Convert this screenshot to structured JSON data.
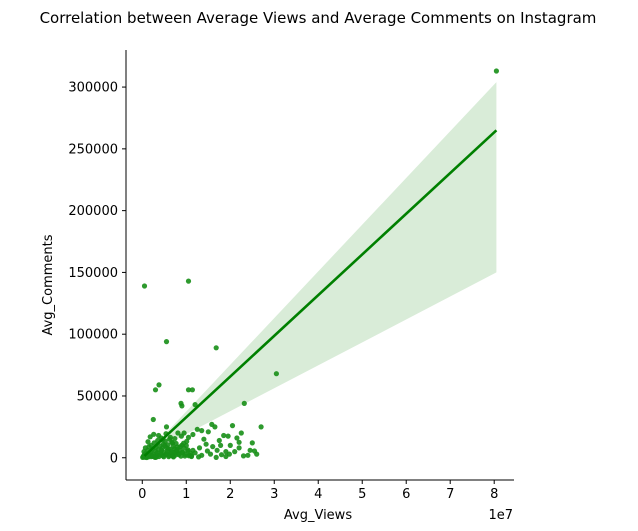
{
  "chart_data": {
    "type": "scatter",
    "title": "Correlation between Average Views and Average Comments on Instagram",
    "xlabel": "Avg_Views",
    "ylabel": "Avg_Comments",
    "x_offset_label": "1e7",
    "x_ticks": [
      0,
      1,
      2,
      3,
      4,
      5,
      6,
      7,
      8
    ],
    "x_tick_labels": [
      "0",
      "1",
      "2",
      "3",
      "4",
      "5",
      "6",
      "7",
      "8"
    ],
    "y_ticks": [
      0,
      50000,
      100000,
      150000,
      200000,
      250000,
      300000
    ],
    "y_tick_labels": [
      "0",
      "50000",
      "100000",
      "150000",
      "200000",
      "250000",
      "300000"
    ],
    "xlim": [
      -0.37,
      8.45
    ],
    "ylim": [
      -18000,
      330000
    ],
    "grid": false,
    "colors": {
      "points": "#178f17",
      "line": "#008000",
      "band": "#d9ecd8"
    },
    "regression": {
      "x": [
        0.05,
        8.05
      ],
      "y": [
        1500,
        265000
      ],
      "ci_upper": [
        1500,
        304000
      ],
      "ci_lower": [
        1500,
        150000
      ]
    },
    "points": [
      [
        0.01,
        300
      ],
      [
        0.02,
        800
      ],
      [
        0.03,
        1500
      ],
      [
        0.05,
        2500
      ],
      [
        0.06,
        400
      ],
      [
        0.08,
        3500
      ],
      [
        0.1,
        1200
      ],
      [
        0.12,
        6000
      ],
      [
        0.14,
        700
      ],
      [
        0.15,
        9000
      ],
      [
        0.17,
        2000
      ],
      [
        0.19,
        4500
      ],
      [
        0.2,
        10000
      ],
      [
        0.22,
        1800
      ],
      [
        0.23,
        7000
      ],
      [
        0.25,
        3000
      ],
      [
        0.27,
        12000
      ],
      [
        0.28,
        500
      ],
      [
        0.3,
        5200
      ],
      [
        0.31,
        8500
      ],
      [
        0.33,
        2200
      ],
      [
        0.35,
        14000
      ],
      [
        0.36,
        6500
      ],
      [
        0.38,
        1000
      ],
      [
        0.4,
        9500
      ],
      [
        0.42,
        3800
      ],
      [
        0.43,
        16000
      ],
      [
        0.45,
        7600
      ],
      [
        0.47,
        1500
      ],
      [
        0.48,
        11000
      ],
      [
        0.5,
        4200
      ],
      [
        0.52,
        13500
      ],
      [
        0.53,
        2600
      ],
      [
        0.55,
        8200
      ],
      [
        0.57,
        5600
      ],
      [
        0.58,
        10500
      ],
      [
        0.6,
        900
      ],
      [
        0.62,
        15000
      ],
      [
        0.63,
        6800
      ],
      [
        0.65,
        3300
      ],
      [
        0.67,
        12500
      ],
      [
        0.68,
        1700
      ],
      [
        0.7,
        9200
      ],
      [
        0.72,
        4700
      ],
      [
        0.73,
        7300
      ],
      [
        0.75,
        2100
      ],
      [
        0.77,
        11500
      ],
      [
        0.78,
        5100
      ],
      [
        0.8,
        8700
      ],
      [
        0.82,
        3600
      ],
      [
        0.85,
        6200
      ],
      [
        0.88,
        1300
      ],
      [
        0.9,
        10200
      ],
      [
        0.92,
        4300
      ],
      [
        0.95,
        7900
      ],
      [
        0.98,
        2700
      ],
      [
        1.0,
        9800
      ],
      [
        1.03,
        5400
      ],
      [
        1.06,
        1600
      ],
      [
        0.1,
        200
      ],
      [
        0.2,
        900
      ],
      [
        0.3,
        300
      ],
      [
        0.04,
        5000
      ],
      [
        0.07,
        8000
      ],
      [
        0.09,
        600
      ],
      [
        0.13,
        13000
      ],
      [
        0.16,
        2900
      ],
      [
        0.18,
        17000
      ],
      [
        0.24,
        1100
      ],
      [
        0.26,
        19000
      ],
      [
        0.32,
        600
      ],
      [
        0.34,
        4100
      ],
      [
        0.37,
        18000
      ],
      [
        0.41,
        2300
      ],
      [
        0.44,
        6100
      ],
      [
        0.46,
        14500
      ],
      [
        0.49,
        800
      ],
      [
        0.51,
        9900
      ],
      [
        0.54,
        19500
      ],
      [
        0.56,
        3100
      ],
      [
        0.59,
        7200
      ],
      [
        0.61,
        1900
      ],
      [
        0.64,
        16500
      ],
      [
        0.66,
        4900
      ],
      [
        0.69,
        12000
      ],
      [
        0.71,
        700
      ],
      [
        0.74,
        15500
      ],
      [
        0.76,
        3900
      ],
      [
        0.79,
        6600
      ],
      [
        0.81,
        20000
      ],
      [
        0.83,
        2500
      ],
      [
        0.86,
        8900
      ],
      [
        0.89,
        17500
      ],
      [
        0.91,
        4400
      ],
      [
        0.94,
        11800
      ],
      [
        0.97,
        1400
      ],
      [
        1.01,
        13200
      ],
      [
        1.04,
        6300
      ],
      [
        1.08,
        2000
      ],
      [
        1.1,
        3500
      ],
      [
        1.12,
        1000
      ],
      [
        1.15,
        18800
      ],
      [
        1.2,
        4000
      ],
      [
        1.25,
        23000
      ],
      [
        1.3,
        8000
      ],
      [
        1.35,
        2000
      ],
      [
        1.4,
        15000
      ],
      [
        1.45,
        11000
      ],
      [
        1.5,
        21000
      ],
      [
        1.55,
        3000
      ],
      [
        1.6,
        9000
      ],
      [
        1.65,
        25000
      ],
      [
        1.7,
        6000
      ],
      [
        1.75,
        14000
      ],
      [
        1.8,
        2500
      ],
      [
        1.85,
        18000
      ],
      [
        1.9,
        1000
      ],
      [
        2.0,
        10000
      ],
      [
        2.1,
        5000
      ],
      [
        2.15,
        16000
      ],
      [
        2.2,
        8000
      ],
      [
        2.3,
        1500
      ],
      [
        2.4,
        2000
      ],
      [
        2.5,
        12000
      ],
      [
        1.15,
        6000
      ],
      [
        1.28,
        700
      ],
      [
        1.48,
        5500
      ],
      [
        1.68,
        300
      ],
      [
        1.78,
        10000
      ],
      [
        1.98,
        3000
      ],
      [
        2.05,
        26000
      ],
      [
        2.25,
        20000
      ],
      [
        2.6,
        3000
      ],
      [
        2.7,
        25000
      ],
      [
        0.25,
        31000
      ],
      [
        0.55,
        25000
      ],
      [
        1.35,
        22000
      ],
      [
        1.58,
        27000
      ],
      [
        1.95,
        17500
      ],
      [
        2.45,
        6000
      ],
      [
        1.9,
        5000
      ],
      [
        2.2,
        12500
      ],
      [
        0.05,
        139000
      ],
      [
        1.05,
        143000
      ],
      [
        0.55,
        94000
      ],
      [
        1.68,
        89000
      ],
      [
        0.3,
        55000
      ],
      [
        0.38,
        59000
      ],
      [
        1.05,
        55000
      ],
      [
        1.14,
        55000
      ],
      [
        0.88,
        44000
      ],
      [
        0.9,
        42000
      ],
      [
        1.2,
        43000
      ],
      [
        2.32,
        44000
      ],
      [
        3.05,
        68000
      ],
      [
        2.55,
        5500
      ],
      [
        1.05,
        16500
      ],
      [
        1.12,
        1500
      ],
      [
        0.95,
        20000
      ],
      [
        0.7,
        1200
      ],
      [
        8.05,
        313000
      ]
    ]
  }
}
